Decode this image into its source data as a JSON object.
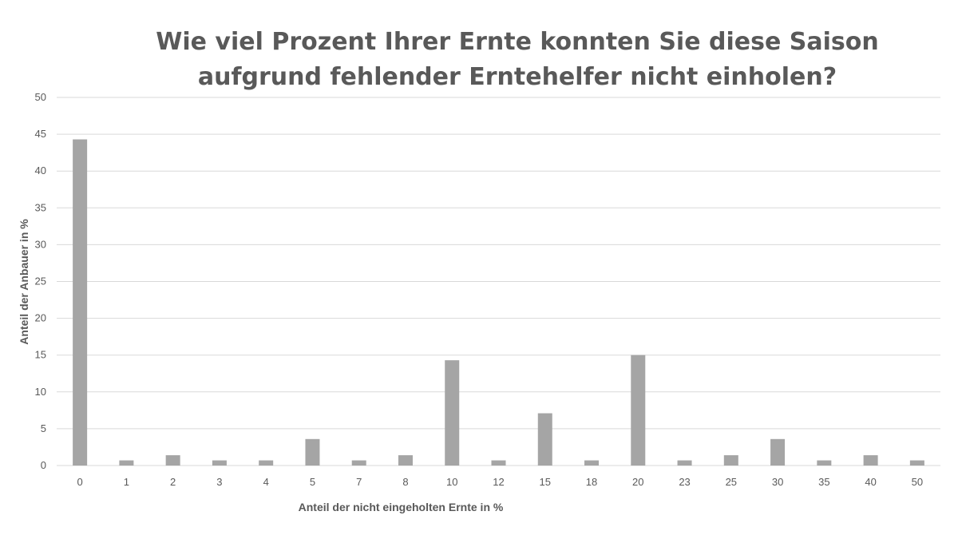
{
  "chart_data": {
    "type": "bar",
    "title_lines": [
      "Wie viel Prozent Ihrer Ernte konnten Sie diese Saison",
      "aufgrund fehlender Erntehelfer nicht einholen?"
    ],
    "xlabel": "Anteil der nicht eingeholten Ernte in %",
    "ylabel": "Anteil der Anbauer in %",
    "categories": [
      "0",
      "1",
      "2",
      "3",
      "4",
      "5",
      "7",
      "8",
      "10",
      "12",
      "15",
      "18",
      "20",
      "23",
      "25",
      "30",
      "35",
      "40",
      "50"
    ],
    "values": [
      44.3,
      0.7,
      1.4,
      0.7,
      0.7,
      3.6,
      0.7,
      1.4,
      14.3,
      0.7,
      7.1,
      0.7,
      15.0,
      0.7,
      1.4,
      3.6,
      0.7,
      1.4,
      0.7
    ],
    "ylim": [
      0,
      50
    ],
    "yticks": [
      0,
      5,
      10,
      15,
      20,
      25,
      30,
      35,
      40,
      45,
      50
    ],
    "grid": true,
    "legend": "none",
    "bar_color": "#a5a5a5",
    "grid_color": "#d9d9d9"
  }
}
